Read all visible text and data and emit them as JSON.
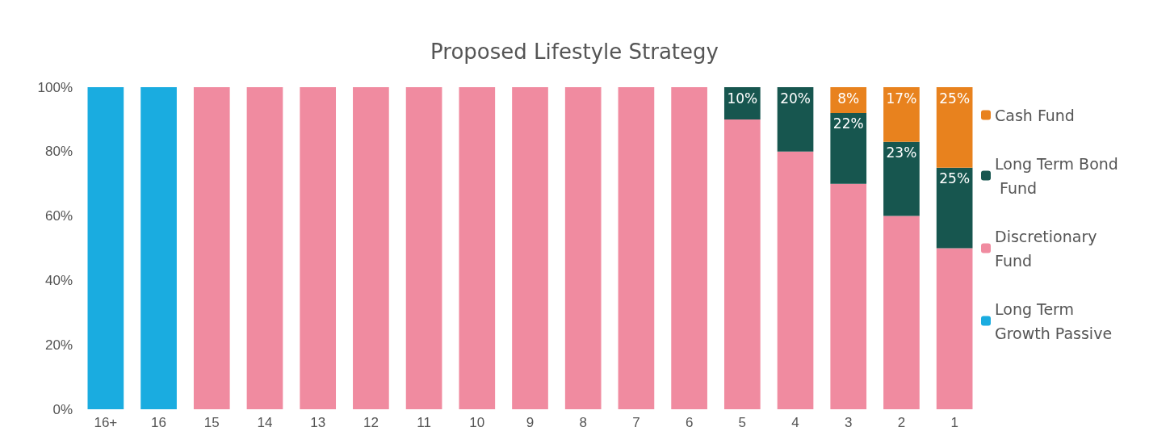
{
  "chart_data": {
    "type": "bar",
    "title": "Proposed Lifestyle Strategy",
    "stacked": true,
    "categories": [
      "16+",
      "16",
      "15",
      "14",
      "13",
      "12",
      "11",
      "10",
      "9",
      "8",
      "7",
      "6",
      "5",
      "4",
      "3",
      "2",
      "1"
    ],
    "series": [
      {
        "name": "Long Term Growth Passive",
        "color": "#1aace0",
        "values": [
          100,
          100,
          null,
          null,
          null,
          null,
          null,
          null,
          null,
          null,
          null,
          null,
          null,
          null,
          null,
          null,
          null
        ]
      },
      {
        "name": "Discretionary Fund",
        "color": "#f08ba0",
        "values": [
          null,
          null,
          100,
          100,
          100,
          100,
          100,
          100,
          100,
          100,
          100,
          100,
          90,
          80,
          70,
          60,
          50
        ]
      },
      {
        "name": "Long Term Bond Fund",
        "color": "#17564f",
        "values": [
          null,
          null,
          null,
          null,
          null,
          null,
          null,
          null,
          null,
          null,
          null,
          null,
          10,
          20,
          22,
          23,
          25
        ],
        "value_labels": [
          null,
          null,
          null,
          null,
          null,
          null,
          null,
          null,
          null,
          null,
          null,
          null,
          "10%",
          "20%",
          "22%",
          "23%",
          "25%"
        ]
      },
      {
        "name": "Cash Fund",
        "color": "#e8821e",
        "values": [
          null,
          null,
          null,
          null,
          null,
          null,
          null,
          null,
          null,
          null,
          null,
          null,
          null,
          null,
          8,
          17,
          25
        ],
        "value_labels": [
          null,
          null,
          null,
          null,
          null,
          null,
          null,
          null,
          null,
          null,
          null,
          null,
          null,
          null,
          "8%",
          "17%",
          "25%"
        ]
      }
    ],
    "ylim": [
      0,
      100
    ],
    "yticks": [
      {
        "value": 0,
        "label": "0%"
      },
      {
        "value": 20,
        "label": "20%"
      },
      {
        "value": 40,
        "label": "40%"
      },
      {
        "value": 60,
        "label": "60%"
      },
      {
        "value": 80,
        "label": "80%"
      },
      {
        "value": 100,
        "label": "100%"
      }
    ],
    "grid": false,
    "legend": "right"
  }
}
